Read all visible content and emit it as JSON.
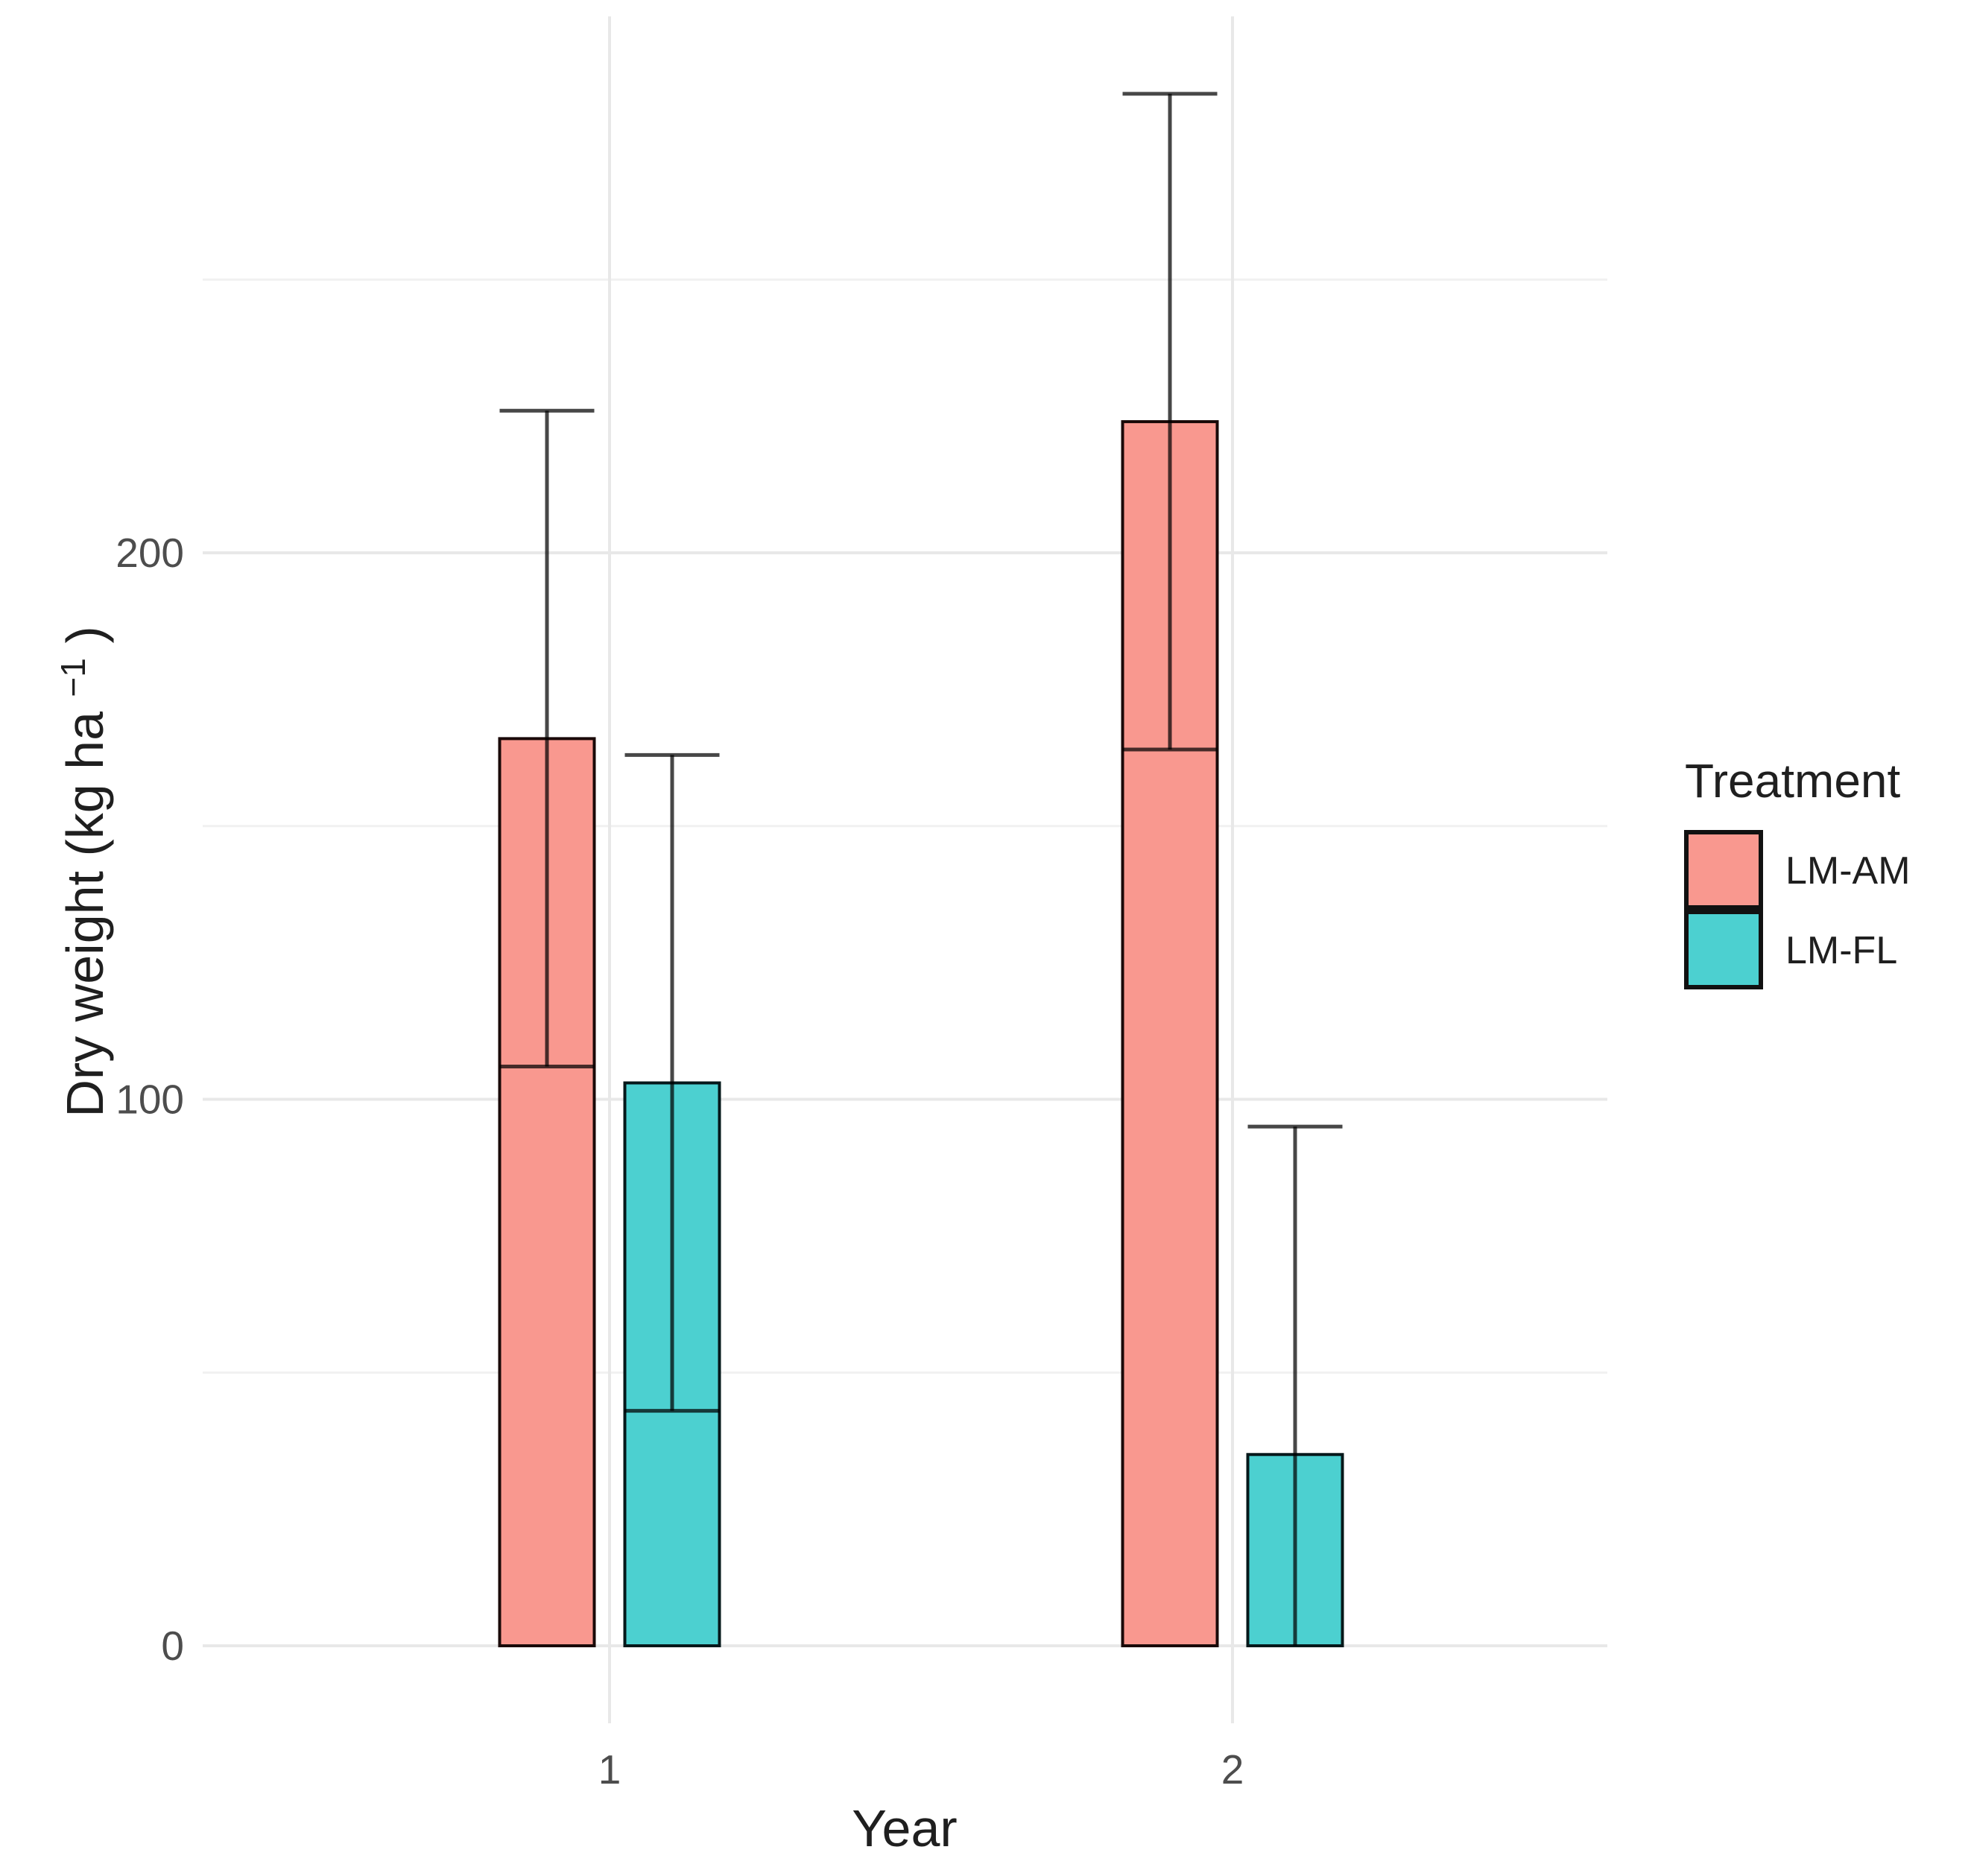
{
  "chart_data": {
    "type": "bar",
    "title": "",
    "xlabel": "Year",
    "ylabel": "Dry weight (kg ha⁻¹)",
    "ylabel_parts": {
      "main": "Dry weight (kg ha",
      "sup": "−1",
      "close": ")"
    },
    "categories": [
      "1",
      "2"
    ],
    "series": [
      {
        "name": "LM-AM",
        "values": [
          166,
          224
        ],
        "sd": [
          60,
          60
        ],
        "fill": "#F9988F",
        "stroke": "#1a0908"
      },
      {
        "name": "LM-FL",
        "values": [
          103,
          35
        ],
        "sd": [
          60,
          60
        ],
        "fill": "#4CD0D0",
        "stroke": "#05181a"
      }
    ],
    "error_bars": {
      "style": "mean±sd",
      "color": "rgba(0,0,0,0.72)",
      "clamp_at_zero": true
    },
    "yticks": [
      0,
      100,
      200
    ],
    "minor_gridlines": [
      50,
      150,
      250
    ],
    "ylim": [
      -14,
      298
    ],
    "grid": true,
    "legend": {
      "title": "Treatment",
      "position": "right"
    },
    "colors": {
      "tick_text": "#4d4d4d",
      "grid_major": "#e8e8e8",
      "grid_minor": "#f1f1f1"
    }
  }
}
